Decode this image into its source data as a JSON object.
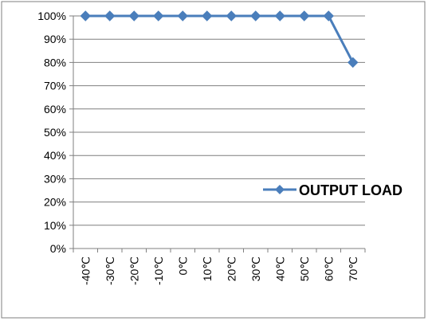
{
  "chart_data": {
    "type": "line",
    "categories": [
      "-40℃",
      "-30℃",
      "-20℃",
      "-10℃",
      "0℃",
      "10℃",
      "20℃",
      "30℃",
      "40℃",
      "50℃",
      "60℃",
      "70℃"
    ],
    "series": [
      {
        "name": "OUTPUT LOAD",
        "values": [
          100,
          100,
          100,
          100,
          100,
          100,
          100,
          100,
          100,
          100,
          100,
          80
        ],
        "color": "#4a7ebb"
      }
    ],
    "y_ticks": [
      "0%",
      "10%",
      "20%",
      "30%",
      "40%",
      "50%",
      "60%",
      "70%",
      "80%",
      "90%",
      "100%"
    ],
    "ylim": [
      0,
      100
    ],
    "y_tick_step": 10,
    "title": "",
    "xlabel": "",
    "ylabel": "",
    "grid": "horizontal",
    "legend_placement": "right",
    "gridline_color": "#7f7f7f",
    "axis_color": "#7f7f7f",
    "frame_color": "#7f7f7f",
    "marker": "diamond"
  }
}
